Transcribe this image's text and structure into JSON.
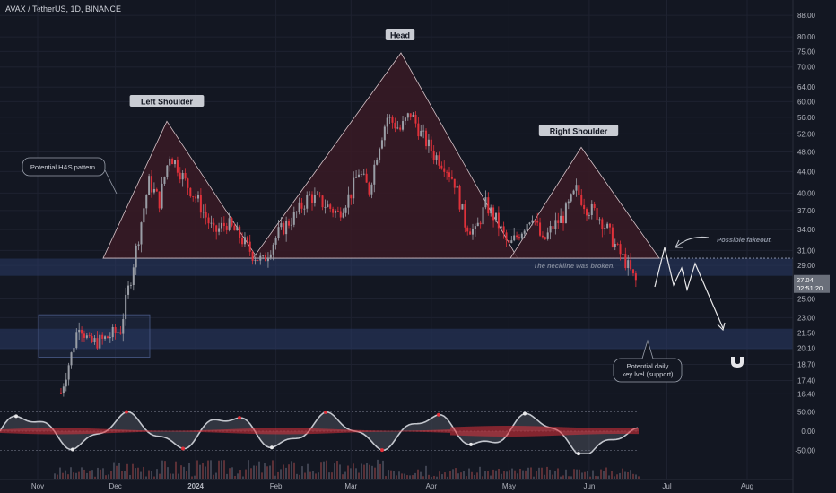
{
  "header": {
    "symbol_line": "AVAX / TetherUS, 1D, BINANCE"
  },
  "chart_data": {
    "type": "candlestick",
    "title": "AVAX / TetherUS, 1D, BINANCE",
    "y_axis": {
      "scale": "log",
      "ticks": [
        "88.00",
        "80.00",
        "75.00",
        "70.00",
        "64.00",
        "60.00",
        "56.00",
        "52.00",
        "48.00",
        "44.00",
        "40.00",
        "37.00",
        "34.00",
        "31.00",
        "29.00",
        "25.00",
        "23.00",
        "21.50",
        "20.10",
        "18.70",
        "17.40",
        "16.40"
      ],
      "tick_values": [
        88,
        80,
        75,
        70,
        64,
        60,
        56,
        52,
        48,
        44,
        40,
        37,
        34,
        31,
        29,
        25,
        23,
        21.5,
        20.1,
        18.7,
        17.4,
        16.4
      ],
      "range": [
        15.6,
        92
      ]
    },
    "x_axis": {
      "ticks": [
        "Nov",
        "Dec",
        "2024",
        "Feb",
        "Mar",
        "Apr",
        "May",
        "Jun",
        "Jul",
        "Aug"
      ],
      "bold_ticks": [
        "2024"
      ],
      "dates": [
        "2023-11-01",
        "2023-12-01",
        "2024-01-01",
        "2024-02-01",
        "2024-03-01",
        "2024-04-01",
        "2024-05-01",
        "2024-06-01",
        "2024-07-01",
        "2024-08-01"
      ]
    },
    "current_price": {
      "value": "27.04",
      "countdown": "02:51:20"
    },
    "price_path": [
      [
        "2023-11-10",
        16.5
      ],
      [
        "2023-11-14",
        19.5
      ],
      [
        "2023-11-17",
        22.5
      ],
      [
        "2023-11-21",
        20.5
      ],
      [
        "2023-11-26",
        20.8
      ],
      [
        "2023-12-03",
        21.8
      ],
      [
        "2023-12-07",
        27.5
      ],
      [
        "2023-12-10",
        33.0
      ],
      [
        "2023-12-14",
        42.0
      ],
      [
        "2023-12-18",
        38.5
      ],
      [
        "2023-12-22",
        47.5
      ],
      [
        "2023-12-25",
        45.0
      ],
      [
        "2023-12-28",
        42.0
      ],
      [
        "2024-01-02",
        38.5
      ],
      [
        "2024-01-08",
        33.5
      ],
      [
        "2024-01-13",
        35.0
      ],
      [
        "2024-01-18",
        33.0
      ],
      [
        "2024-01-23",
        30.5
      ],
      [
        "2024-01-27",
        29.5
      ],
      [
        "2024-02-02",
        33.5
      ],
      [
        "2024-02-08",
        36.0
      ],
      [
        "2024-02-14",
        39.5
      ],
      [
        "2024-02-20",
        38.0
      ],
      [
        "2024-02-25",
        36.5
      ],
      [
        "2024-03-01",
        40.0
      ],
      [
        "2024-03-04",
        44.0
      ],
      [
        "2024-03-08",
        40.5
      ],
      [
        "2024-03-12",
        50.0
      ],
      [
        "2024-03-15",
        56.0
      ],
      [
        "2024-03-20",
        53.0
      ],
      [
        "2024-03-24",
        57.0
      ],
      [
        "2024-03-28",
        52.0
      ],
      [
        "2024-04-02",
        47.5
      ],
      [
        "2024-04-06",
        45.5
      ],
      [
        "2024-04-10",
        42.0
      ],
      [
        "2024-04-14",
        35.0
      ],
      [
        "2024-04-18",
        33.5
      ],
      [
        "2024-04-22",
        38.0
      ],
      [
        "2024-04-26",
        35.5
      ],
      [
        "2024-05-01",
        31.5
      ],
      [
        "2024-05-06",
        34.0
      ],
      [
        "2024-05-10",
        36.5
      ],
      [
        "2024-05-14",
        32.0
      ],
      [
        "2024-05-18",
        34.5
      ],
      [
        "2024-05-22",
        36.0
      ],
      [
        "2024-05-27",
        40.5
      ],
      [
        "2024-05-31",
        37.5
      ],
      [
        "2024-06-04",
        36.5
      ],
      [
        "2024-06-08",
        34.0
      ],
      [
        "2024-06-12",
        31.0
      ],
      [
        "2024-06-15",
        29.5
      ],
      [
        "2024-06-18",
        27.5
      ],
      [
        "2024-06-19",
        27.04
      ]
    ],
    "rsi_panel": {
      "ticks": [
        "50.00",
        "0.00",
        "-50.00"
      ],
      "tick_values": [
        50,
        0,
        -50
      ]
    }
  },
  "annotations": {
    "left_shoulder": "Left Shoulder",
    "head": "Head",
    "right_shoulder": "Right Shoulder",
    "potential_pattern": "Potential H&S pattern.",
    "neckline_broken": "The neckline was broken.",
    "possible_fakeout": "Possible fakeout.",
    "support_line1": "Potential daily",
    "support_line2": "key lvel (support)"
  },
  "colors": {
    "background": "#131722",
    "bull": "#9a9ea6",
    "bear": "#e0313a",
    "zone": "#2a3a66",
    "pattern_fill": "#3a1a24"
  }
}
